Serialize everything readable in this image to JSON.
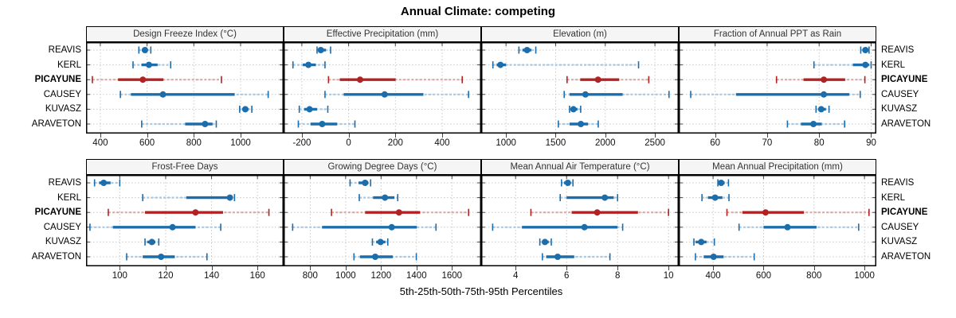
{
  "title": "Annual Climate: competing",
  "xlabel": "5th-25th-50th-75th-95th Percentiles",
  "percentile_levels": [
    5,
    25,
    50,
    75,
    95
  ],
  "stations": [
    {
      "name": "REAVIS",
      "highlight": false
    },
    {
      "name": "KERL",
      "highlight": false
    },
    {
      "name": "PICAYUNE",
      "highlight": true
    },
    {
      "name": "CAUSEY",
      "highlight": false
    },
    {
      "name": "KUVASZ",
      "highlight": false
    },
    {
      "name": "ARAVETON",
      "highlight": false
    }
  ],
  "colors": {
    "series": "#1c6dac",
    "series_light": "#a9c8e2",
    "highlight": "#b22222",
    "highlight_light": "#dcaaa6",
    "grid": "#c9c9c9",
    "strip_bg": "#f5f5f5",
    "border": "#000000",
    "tick": "#444444"
  },
  "chart_data": {
    "type": "dot-whisker-trellis",
    "layout": {
      "rows": 2,
      "cols": 4
    },
    "note": "each series row = [p5,p25,p50,p75,p95] per station in stations order",
    "panels": [
      {
        "title": "Design Freeze Index (°C)",
        "xlim": [
          339,
          1184
        ],
        "ticks": [
          400,
          600,
          800,
          1000
        ],
        "series": [
          [
            565,
            578,
            591,
            603,
            616
          ],
          [
            540,
            576,
            608,
            645,
            701
          ],
          [
            366,
            476,
            582,
            670,
            918
          ],
          [
            486,
            531,
            668,
            975,
            1118
          ],
          [
            996,
            1008,
            1020,
            1034,
            1048
          ],
          [
            577,
            763,
            848,
            880,
            896
          ]
        ]
      },
      {
        "title": "Effective Precipitation (mm)",
        "xlim": [
          -278,
          567
        ],
        "ticks": [
          -200,
          0,
          200,
          400
        ],
        "series": [
          [
            -135,
            -124,
            -119,
            -97,
            -77
          ],
          [
            -238,
            -196,
            -172,
            -140,
            -101
          ],
          [
            -86,
            -38,
            49,
            201,
            486
          ],
          [
            -101,
            -21,
            154,
            320,
            513
          ],
          [
            -211,
            -190,
            -167,
            -135,
            -89
          ],
          [
            -215,
            -163,
            -113,
            -49,
            27
          ]
        ]
      },
      {
        "title": "Elevation (m)",
        "xlim": [
          750,
          2740
        ],
        "ticks": [
          1000,
          1500,
          2000,
          2500
        ],
        "series": [
          [
            1130,
            1165,
            1212,
            1255,
            1300
          ],
          [
            868,
            905,
            944,
            1000,
            2335
          ],
          [
            1615,
            1748,
            1927,
            2140,
            2438
          ],
          [
            1586,
            1640,
            1800,
            2175,
            2642
          ],
          [
            1640,
            1660,
            1679,
            1720,
            1752
          ],
          [
            1527,
            1640,
            1754,
            1826,
            1929
          ]
        ]
      },
      {
        "title": "Fraction of Annual PPT as Rain",
        "xlim": [
          53,
          91
        ],
        "ticks": [
          60,
          70,
          80,
          90
        ],
        "series": [
          [
            88,
            88.4,
            88.9,
            89.3,
            89.6
          ],
          [
            79,
            86.5,
            88.9,
            89.6,
            90
          ],
          [
            71.8,
            77,
            80.9,
            85,
            88.8
          ],
          [
            55.3,
            64,
            80.9,
            85.8,
            87.9
          ],
          [
            79.4,
            80,
            80.4,
            81.3,
            81.9
          ],
          [
            73.9,
            76.5,
            78.9,
            80.5,
            84.9
          ]
        ]
      },
      {
        "title": "Frost-Free Days",
        "xlim": [
          85.3,
          171.4
        ],
        "ticks": [
          100,
          120,
          140,
          160
        ],
        "series": [
          [
            89,
            91,
            93,
            96,
            100
          ],
          [
            110,
            129,
            148,
            149,
            150
          ],
          [
            95,
            111,
            133,
            145,
            165
          ],
          [
            87,
            97,
            123,
            133,
            144
          ],
          [
            111,
            112,
            114,
            115.5,
            117
          ],
          [
            103,
            110,
            118,
            124,
            138
          ]
        ]
      },
      {
        "title": "Growing Degree Days (°C)",
        "xlim": [
          650,
          1765
        ],
        "ticks": [
          800,
          1000,
          1200,
          1400,
          1600
        ],
        "series": [
          [
            1025,
            1073,
            1110,
            1128,
            1141
          ],
          [
            1077,
            1155,
            1222,
            1275,
            1294
          ],
          [
            920,
            1110,
            1301,
            1420,
            1694
          ],
          [
            701,
            867,
            1260,
            1402,
            1510
          ],
          [
            1151,
            1172,
            1197,
            1224,
            1238
          ],
          [
            1047,
            1081,
            1167,
            1266,
            1399
          ]
        ]
      },
      {
        "title": "Mean Annual Air Temperature (°C)",
        "xlim": [
          2.65,
          10.4
        ],
        "ticks": [
          4,
          6,
          8,
          10
        ],
        "series": [
          [
            5.8,
            5.9,
            6.05,
            6.15,
            6.25
          ],
          [
            5.75,
            6,
            7.5,
            7.85,
            8
          ],
          [
            4.6,
            6.2,
            7.2,
            8.8,
            10
          ],
          [
            3.1,
            4.25,
            6.7,
            8,
            8.2
          ],
          [
            4.95,
            5.05,
            5.15,
            5.3,
            5.4
          ],
          [
            5.05,
            5.2,
            5.65,
            6.3,
            7.7
          ]
        ]
      },
      {
        "title": "Mean Annual Precipitation (mm)",
        "xlim": [
          264,
          1047
        ],
        "ticks": [
          400,
          600,
          800,
          1000
        ],
        "series": [
          [
            419,
            425,
            432,
            446,
            461
          ],
          [
            356,
            380,
            408,
            437,
            463
          ],
          [
            455,
            516,
            608,
            760,
            1018
          ],
          [
            503,
            600,
            695,
            810,
            977
          ],
          [
            324,
            331,
            353,
            374,
            405
          ],
          [
            330,
            363,
            402,
            442,
            563
          ]
        ]
      }
    ]
  }
}
